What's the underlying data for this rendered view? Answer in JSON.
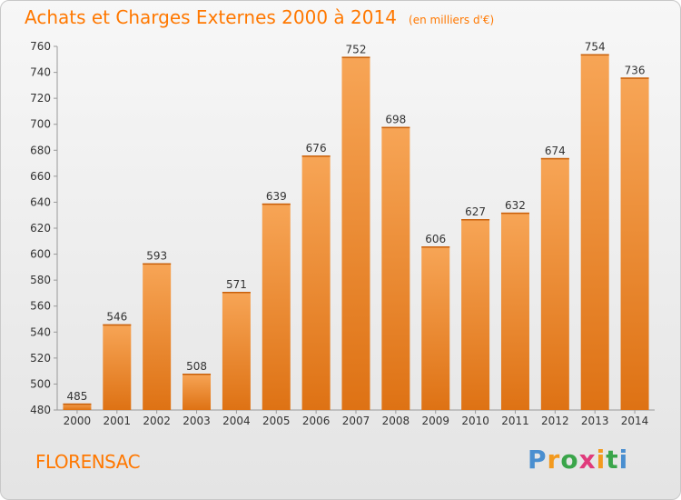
{
  "title": "Achats et Charges Externes 2000 à 2014",
  "unit": "(en milliers d'€)",
  "city": "FLORENSAC",
  "logo": "Proxiti",
  "colors": {
    "title": "#ff7800",
    "bar_light": "#f7a556",
    "bar_dark": "#de7214"
  },
  "chart_data": {
    "type": "bar",
    "categories": [
      "2000",
      "2001",
      "2002",
      "2003",
      "2004",
      "2005",
      "2006",
      "2007",
      "2008",
      "2009",
      "2010",
      "2011",
      "2012",
      "2013",
      "2014"
    ],
    "values": [
      485,
      546,
      593,
      508,
      571,
      639,
      676,
      752,
      698,
      606,
      627,
      632,
      674,
      754,
      736
    ],
    "yticks": [
      480,
      500,
      520,
      540,
      560,
      580,
      600,
      620,
      640,
      660,
      680,
      700,
      720,
      740,
      760
    ],
    "ylim": [
      480,
      760
    ],
    "grid": false
  }
}
